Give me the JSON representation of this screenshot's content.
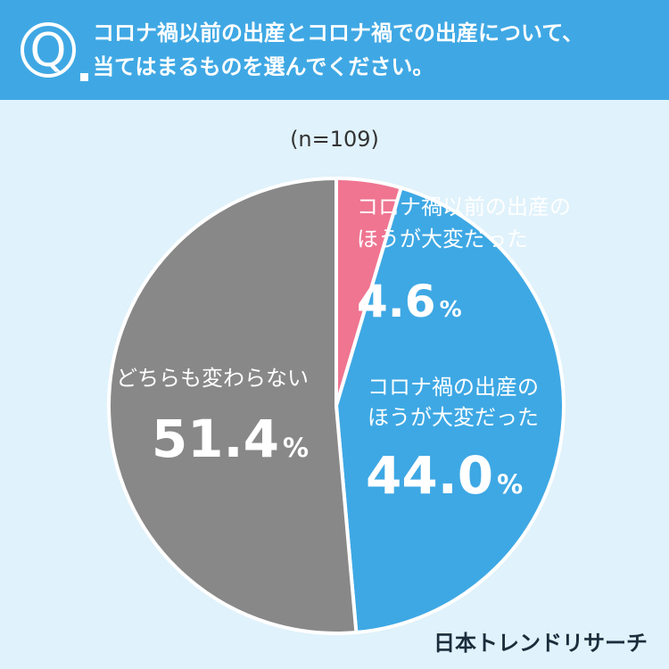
{
  "header": {
    "badge_letter": "Q",
    "question_line1": "コロナ禍以前の出産とコロナ禍での出産について、",
    "question_line2": "当てはまるものを選んでください。"
  },
  "sample_size": "(n=109)",
  "brand": "日本トレンドリサーチ",
  "colors": {
    "header_bg": "#3fa8e4",
    "page_bg": "#e0f2fb",
    "text": "#333333"
  },
  "chart_data": {
    "type": "pie",
    "title": "",
    "start_angle_deg": 0,
    "direction": "clockwise",
    "slices": [
      {
        "label_line1": "コロナ禍以前の出産の",
        "label_line2": "ほうが大変だった",
        "value": 4.6,
        "value_text": "4.6",
        "unit": "%",
        "color": "#ef7591",
        "label_color": "#ffffff"
      },
      {
        "label_line1": "コロナ禍の出産の",
        "label_line2": "ほうが大変だった",
        "value": 44.0,
        "value_text": "44.0",
        "unit": "%",
        "color": "#3ea8e4",
        "label_color": "#ffffff"
      },
      {
        "label_line1": "どちらも変わらない",
        "label_line2": "",
        "value": 51.4,
        "value_text": "51.4",
        "unit": "%",
        "color": "#888888",
        "label_color": "#ffffff"
      }
    ]
  }
}
